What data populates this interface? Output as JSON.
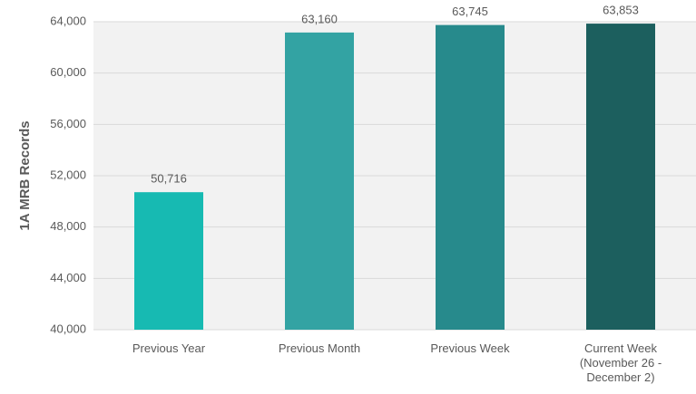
{
  "chart_data": {
    "type": "bar",
    "y_label": "1A MRB Records",
    "categories": [
      "Previous Year",
      "Previous Month",
      "Previous Week",
      "Current Week (November 26 - December 2)"
    ],
    "values": [
      50716,
      63160,
      63745,
      63853
    ],
    "value_labels": [
      "50,716",
      "63,160",
      "63,745",
      "63,853"
    ],
    "colors": [
      "#17bab2",
      "#33a3a3",
      "#278a8c",
      "#1c5f5e"
    ],
    "ylim": [
      40000,
      64000
    ],
    "yticks": [
      {
        "value": 40000,
        "label": "40,000"
      },
      {
        "value": 44000,
        "label": "44,000"
      },
      {
        "value": 48000,
        "label": "48,000"
      },
      {
        "value": 52000,
        "label": "52,000"
      },
      {
        "value": 56000,
        "label": "56,000"
      },
      {
        "value": 60000,
        "label": "60,000"
      },
      {
        "value": 64000,
        "label": "64,000"
      }
    ],
    "grid": true
  }
}
